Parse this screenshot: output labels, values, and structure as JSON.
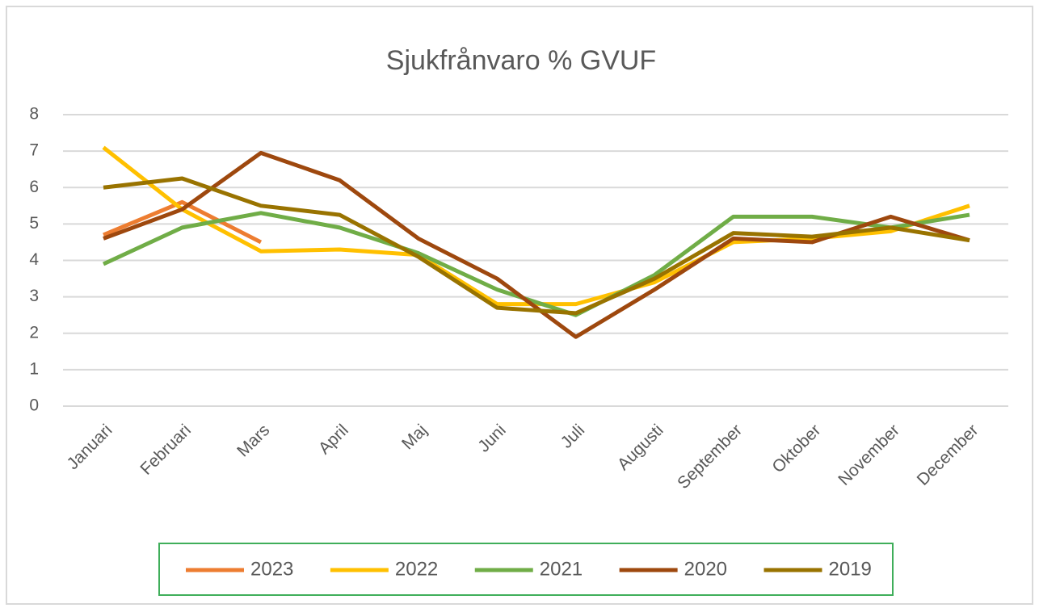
{
  "chart_data": {
    "type": "line",
    "title": "Sjukfrånvaro % GVUF",
    "categories": [
      "Januari",
      "Februari",
      "Mars",
      "April",
      "Maj",
      "Juni",
      "Juli",
      "Augusti",
      "September",
      "Oktober",
      "November",
      "December"
    ],
    "series": [
      {
        "name": "2023",
        "color": "#ed7d31",
        "values": [
          4.7,
          5.6,
          4.5,
          null,
          null,
          null,
          null,
          null,
          null,
          null,
          null,
          null
        ]
      },
      {
        "name": "2022",
        "color": "#ffc000",
        "values": [
          7.1,
          5.4,
          4.25,
          4.3,
          4.15,
          2.8,
          2.8,
          3.4,
          4.5,
          4.6,
          4.8,
          5.5
        ]
      },
      {
        "name": "2021",
        "color": "#70ad47",
        "values": [
          3.9,
          4.9,
          5.3,
          4.9,
          4.2,
          3.2,
          2.5,
          3.6,
          5.2,
          5.2,
          4.9,
          5.25
        ]
      },
      {
        "name": "2020",
        "color": "#9e480e",
        "values": [
          4.6,
          5.4,
          6.95,
          6.2,
          4.6,
          3.5,
          1.9,
          3.2,
          4.6,
          4.5,
          5.2,
          4.55
        ]
      },
      {
        "name": "2019",
        "color": "#997300",
        "values": [
          6.0,
          6.25,
          5.5,
          5.25,
          4.1,
          2.7,
          2.55,
          3.5,
          4.75,
          4.65,
          4.9,
          4.55
        ]
      }
    ],
    "ylim": [
      0,
      8
    ],
    "yticks": [
      0,
      1,
      2,
      3,
      4,
      5,
      6,
      7,
      8
    ],
    "grid": true,
    "legend": "bottom"
  }
}
